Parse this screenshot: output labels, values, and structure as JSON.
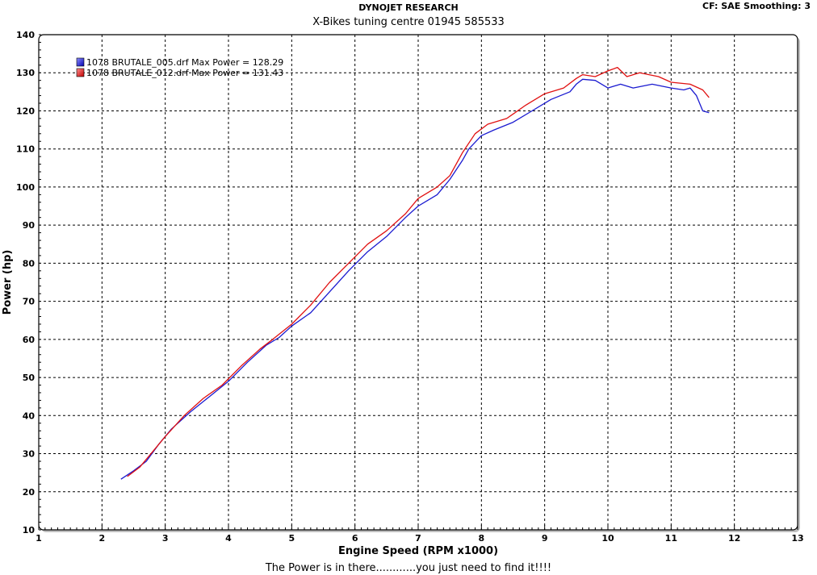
{
  "header": {
    "brand": "DYNOJET RESEARCH",
    "subtitle": "X-Bikes tuning centre 01945 585533",
    "settings": "CF: SAE  Smoothing: 3"
  },
  "footer": {
    "tagline": "The Power is in there............you just need to find it!!!!"
  },
  "chart_data": {
    "type": "line",
    "xlabel": "Engine Speed (RPM x1000)",
    "ylabel": "Power (hp)",
    "xlim": [
      1,
      13
    ],
    "ylim": [
      10,
      140
    ],
    "xticks": [
      1,
      2,
      3,
      4,
      5,
      6,
      7,
      8,
      9,
      10,
      11,
      12,
      13
    ],
    "yticks": [
      10,
      20,
      30,
      40,
      50,
      60,
      70,
      80,
      90,
      100,
      110,
      120,
      130,
      140
    ],
    "grid": true,
    "legend_position": "top-left",
    "series": [
      {
        "name": "1078 BRUTALE_005.drf Max Power = 128.29",
        "color": "#1a1ad0",
        "points": [
          [
            2.3,
            23.3
          ],
          [
            2.5,
            25.5
          ],
          [
            2.7,
            28
          ],
          [
            2.9,
            32.5
          ],
          [
            3.1,
            36.5
          ],
          [
            3.4,
            41
          ],
          [
            3.7,
            45
          ],
          [
            4.0,
            49
          ],
          [
            4.3,
            54
          ],
          [
            4.6,
            58.5
          ],
          [
            4.8,
            60.5
          ],
          [
            5.0,
            63.5
          ],
          [
            5.3,
            67
          ],
          [
            5.6,
            72.5
          ],
          [
            5.9,
            78
          ],
          [
            6.2,
            83
          ],
          [
            6.5,
            87
          ],
          [
            6.8,
            92
          ],
          [
            7.0,
            95
          ],
          [
            7.3,
            98
          ],
          [
            7.5,
            102
          ],
          [
            7.7,
            107
          ],
          [
            7.8,
            110
          ],
          [
            8.0,
            113.5
          ],
          [
            8.2,
            115
          ],
          [
            8.5,
            117
          ],
          [
            8.8,
            120
          ],
          [
            9.1,
            123
          ],
          [
            9.4,
            125
          ],
          [
            9.5,
            127
          ],
          [
            9.6,
            128.3
          ],
          [
            9.8,
            128
          ],
          [
            10.0,
            126
          ],
          [
            10.2,
            127
          ],
          [
            10.4,
            126
          ],
          [
            10.7,
            127
          ],
          [
            11.0,
            126
          ],
          [
            11.2,
            125.5
          ],
          [
            11.3,
            126
          ],
          [
            11.4,
            124
          ],
          [
            11.5,
            120
          ],
          [
            11.6,
            119.5
          ]
        ]
      },
      {
        "name": "1078 BRUTALE_012.drf Max Power = 131.43",
        "color": "#e01010",
        "points": [
          [
            2.4,
            24
          ],
          [
            2.6,
            26.5
          ],
          [
            2.8,
            30.5
          ],
          [
            3.0,
            34.5
          ],
          [
            3.3,
            40
          ],
          [
            3.6,
            44.5
          ],
          [
            3.9,
            48
          ],
          [
            4.2,
            53
          ],
          [
            4.5,
            57.5
          ],
          [
            4.7,
            60
          ],
          [
            5.0,
            64
          ],
          [
            5.3,
            69
          ],
          [
            5.6,
            75
          ],
          [
            5.9,
            80
          ],
          [
            6.2,
            85
          ],
          [
            6.5,
            88.5
          ],
          [
            6.8,
            93
          ],
          [
            7.0,
            97
          ],
          [
            7.3,
            100
          ],
          [
            7.5,
            103
          ],
          [
            7.7,
            109
          ],
          [
            7.9,
            114
          ],
          [
            8.1,
            116.5
          ],
          [
            8.4,
            118
          ],
          [
            8.7,
            121.5
          ],
          [
            9.0,
            124.5
          ],
          [
            9.3,
            126
          ],
          [
            9.5,
            128.5
          ],
          [
            9.6,
            129.5
          ],
          [
            9.8,
            129
          ],
          [
            10.0,
            130.5
          ],
          [
            10.15,
            131.4
          ],
          [
            10.3,
            129
          ],
          [
            10.5,
            130
          ],
          [
            10.8,
            129
          ],
          [
            11.0,
            127.5
          ],
          [
            11.3,
            127
          ],
          [
            11.5,
            125.5
          ],
          [
            11.6,
            123.5
          ]
        ]
      }
    ]
  }
}
